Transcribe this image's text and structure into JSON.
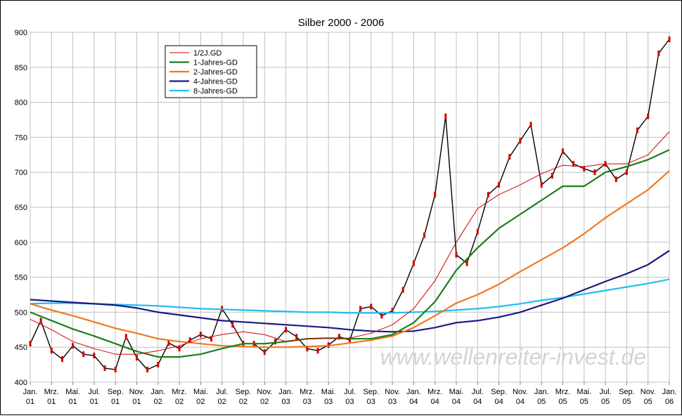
{
  "chart_data": {
    "type": "line",
    "title": "Silber 2000 - 2006",
    "xlabel": "",
    "ylabel": "",
    "ylim": [
      400,
      900
    ],
    "yticks": [
      400,
      450,
      500,
      550,
      600,
      650,
      700,
      750,
      800,
      850,
      900
    ],
    "xlim": [
      "2001-01",
      "2006-01"
    ],
    "xticks": [
      {
        "month": "Jan.",
        "year": "01"
      },
      {
        "month": "Mrz.",
        "year": "01"
      },
      {
        "month": "Mai.",
        "year": "01"
      },
      {
        "month": "Jul.",
        "year": "01"
      },
      {
        "month": "Sep.",
        "year": "01"
      },
      {
        "month": "Nov.",
        "year": "01"
      },
      {
        "month": "Jan.",
        "year": "02"
      },
      {
        "month": "Mrz.",
        "year": "02"
      },
      {
        "month": "Mai.",
        "year": "02"
      },
      {
        "month": "Jul.",
        "year": "02"
      },
      {
        "month": "Sep.",
        "year": "02"
      },
      {
        "month": "Nov.",
        "year": "02"
      },
      {
        "month": "Jan.",
        "year": "03"
      },
      {
        "month": "Mrz.",
        "year": "03"
      },
      {
        "month": "Mai.",
        "year": "03"
      },
      {
        "month": "Jul.",
        "year": "03"
      },
      {
        "month": "Sep.",
        "year": "03"
      },
      {
        "month": "Nov.",
        "year": "03"
      },
      {
        "month": "Jan.",
        "year": "04"
      },
      {
        "month": "Mrz.",
        "year": "04"
      },
      {
        "month": "Mai.",
        "year": "04"
      },
      {
        "month": "Jul.",
        "year": "04"
      },
      {
        "month": "Sep.",
        "year": "04"
      },
      {
        "month": "Nov.",
        "year": "04"
      },
      {
        "month": "Jan.",
        "year": "05"
      },
      {
        "month": "Mrz.",
        "year": "05"
      },
      {
        "month": "Mai.",
        "year": "05"
      },
      {
        "month": "Jul.",
        "year": "05"
      },
      {
        "month": "Sep.",
        "year": "05"
      },
      {
        "month": "Nov.",
        "year": "05"
      },
      {
        "month": "Jan.",
        "year": "06"
      }
    ],
    "grid": true,
    "legend_position": "top-left",
    "watermark": "www.wellenreiter-invest.de",
    "series": [
      {
        "name": "Silber",
        "kind": "price",
        "color": "#d00000",
        "wick_color": "#000000",
        "x": [
          "2001-01",
          "2001-02",
          "2001-03",
          "2001-04",
          "2001-05",
          "2001-06",
          "2001-07",
          "2001-08",
          "2001-09",
          "2001-10",
          "2001-11",
          "2001-12",
          "2002-01",
          "2002-02",
          "2002-03",
          "2002-04",
          "2002-05",
          "2002-06",
          "2002-07",
          "2002-08",
          "2002-09",
          "2002-10",
          "2002-11",
          "2002-12",
          "2003-01",
          "2003-02",
          "2003-03",
          "2003-04",
          "2003-05",
          "2003-06",
          "2003-07",
          "2003-08",
          "2003-09",
          "2003-10",
          "2003-11",
          "2003-12",
          "2004-01",
          "2004-02",
          "2004-03",
          "2004-04",
          "2004-05",
          "2004-06",
          "2004-07",
          "2004-08",
          "2004-09",
          "2004-10",
          "2004-11",
          "2004-12",
          "2005-01",
          "2005-02",
          "2005-03",
          "2005-04",
          "2005-05",
          "2005-06",
          "2005-07",
          "2005-08",
          "2005-09",
          "2005-10",
          "2005-11",
          "2005-12",
          "2006-01"
        ],
        "values": [
          455,
          488,
          445,
          433,
          452,
          440,
          438,
          420,
          418,
          465,
          435,
          418,
          425,
          456,
          448,
          460,
          468,
          462,
          505,
          482,
          455,
          455,
          443,
          458,
          475,
          465,
          448,
          445,
          453,
          465,
          460,
          505,
          508,
          495,
          502,
          532,
          570,
          610,
          668,
          780,
          582,
          570,
          615,
          668,
          682,
          722,
          745,
          768,
          682,
          695,
          730,
          712,
          705,
          700,
          712,
          690,
          700,
          760,
          780,
          870,
          890
        ]
      },
      {
        "name": "1/2J.GD",
        "kind": "moving-average",
        "color": "#d00000",
        "x": [
          "2001-01",
          "2001-03",
          "2001-05",
          "2001-07",
          "2001-09",
          "2001-11",
          "2002-01",
          "2002-03",
          "2002-05",
          "2002-07",
          "2002-09",
          "2002-11",
          "2003-01",
          "2003-03",
          "2003-05",
          "2003-07",
          "2003-09",
          "2003-11",
          "2004-01",
          "2004-03",
          "2004-05",
          "2004-07",
          "2004-09",
          "2004-11",
          "2005-01",
          "2005-03",
          "2005-05",
          "2005-07",
          "2005-09",
          "2005-11",
          "2006-01"
        ],
        "values": [
          490,
          475,
          458,
          448,
          440,
          440,
          445,
          452,
          462,
          468,
          472,
          468,
          458,
          462,
          463,
          463,
          470,
          482,
          505,
          545,
          600,
          648,
          668,
          682,
          698,
          710,
          708,
          712,
          712,
          725,
          758
        ]
      },
      {
        "name": "1-Jahres-GD",
        "kind": "moving-average",
        "color": "#1a7f1a",
        "x": [
          "2001-01",
          "2001-03",
          "2001-05",
          "2001-07",
          "2001-09",
          "2001-11",
          "2002-01",
          "2002-03",
          "2002-05",
          "2002-07",
          "2002-09",
          "2002-11",
          "2003-01",
          "2003-03",
          "2003-05",
          "2003-07",
          "2003-09",
          "2003-11",
          "2004-01",
          "2004-03",
          "2004-05",
          "2004-07",
          "2004-09",
          "2004-11",
          "2005-01",
          "2005-03",
          "2005-05",
          "2005-07",
          "2005-09",
          "2005-11",
          "2006-01"
        ],
        "values": [
          500,
          488,
          476,
          466,
          455,
          444,
          436,
          436,
          440,
          448,
          455,
          455,
          458,
          462,
          463,
          462,
          462,
          468,
          485,
          515,
          560,
          592,
          620,
          640,
          660,
          680,
          680,
          700,
          708,
          718,
          732
        ]
      },
      {
        "name": "2-Jahres-GD",
        "kind": "moving-average",
        "color": "#f07820",
        "x": [
          "2001-01",
          "2001-03",
          "2001-05",
          "2001-07",
          "2001-09",
          "2001-11",
          "2002-01",
          "2002-03",
          "2002-05",
          "2002-07",
          "2002-09",
          "2002-11",
          "2003-01",
          "2003-03",
          "2003-05",
          "2003-07",
          "2003-09",
          "2003-11",
          "2004-01",
          "2004-03",
          "2004-05",
          "2004-07",
          "2004-09",
          "2004-11",
          "2005-01",
          "2005-03",
          "2005-05",
          "2005-07",
          "2005-09",
          "2005-11",
          "2006-01"
        ],
        "values": [
          512,
          503,
          495,
          486,
          477,
          470,
          462,
          458,
          455,
          452,
          451,
          450,
          450,
          451,
          452,
          456,
          460,
          466,
          478,
          495,
          513,
          525,
          540,
          558,
          575,
          592,
          612,
          635,
          655,
          675,
          702
        ]
      },
      {
        "name": "4-Jahres-GD",
        "kind": "moving-average",
        "color": "#1a1a80",
        "x": [
          "2001-01",
          "2001-03",
          "2001-05",
          "2001-07",
          "2001-09",
          "2001-11",
          "2002-01",
          "2002-03",
          "2002-05",
          "2002-07",
          "2002-09",
          "2002-11",
          "2003-01",
          "2003-03",
          "2003-05",
          "2003-07",
          "2003-09",
          "2003-11",
          "2004-01",
          "2004-03",
          "2004-05",
          "2004-07",
          "2004-09",
          "2004-11",
          "2005-01",
          "2005-03",
          "2005-05",
          "2005-07",
          "2005-09",
          "2005-11",
          "2006-01"
        ],
        "values": [
          518,
          516,
          514,
          512,
          510,
          506,
          500,
          496,
          492,
          488,
          486,
          484,
          482,
          480,
          478,
          475,
          473,
          472,
          473,
          478,
          485,
          488,
          493,
          500,
          510,
          520,
          532,
          544,
          555,
          568,
          588
        ]
      },
      {
        "name": "8-Jahres-GD",
        "kind": "moving-average",
        "color": "#22c0ee",
        "x": [
          "2001-01",
          "2001-03",
          "2001-05",
          "2001-07",
          "2001-09",
          "2001-11",
          "2002-01",
          "2002-03",
          "2002-05",
          "2002-07",
          "2002-09",
          "2002-11",
          "2003-01",
          "2003-03",
          "2003-05",
          "2003-07",
          "2003-09",
          "2003-11",
          "2004-01",
          "2004-03",
          "2004-05",
          "2004-07",
          "2004-09",
          "2004-11",
          "2005-01",
          "2005-03",
          "2005-05",
          "2005-07",
          "2005-09",
          "2005-11",
          "2006-01"
        ],
        "values": [
          512,
          513,
          513,
          512,
          511,
          510,
          509,
          507,
          505,
          504,
          503,
          502,
          501,
          500,
          500,
          499,
          499,
          499,
          500,
          501,
          503,
          505,
          508,
          512,
          517,
          521,
          526,
          531,
          536,
          541,
          547
        ]
      }
    ]
  }
}
